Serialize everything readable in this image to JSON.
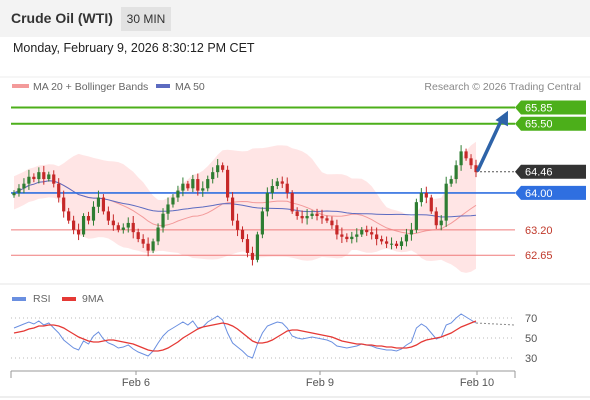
{
  "header": {
    "title": "Crude Oil (WTI)",
    "timeframe": "30 MIN"
  },
  "datetime": "Monday, February 9, 2026 8:30:12 PM CET",
  "legend": {
    "bb_label": "MA 20 + Bollinger Bands",
    "ma50_label": "MA 50",
    "copyright": "Research © 2026 Trading Central",
    "rsi_label": "RSI",
    "rsi_ma_label": "9MA"
  },
  "colors": {
    "up_candle": "#2e7d32",
    "down_candle": "#c62828",
    "band_fill": "#ffdcdc",
    "ma20": "#f39a9a",
    "ma50": "#5c6bc0",
    "resistance": "#4caf1a",
    "pivot": "#2f6fe0",
    "support": "#ef7a7a",
    "current": "#333333",
    "arrow": "#2e63a8",
    "rsi": "#6a8fe0",
    "rsi_ma": "#e53935"
  },
  "chart_data": [
    {
      "type": "candlestick",
      "x_ticks": [
        "Feb 6",
        "Feb 9",
        "Feb 10"
      ],
      "ylim": [
        62.2,
        66.1
      ],
      "levels": [
        {
          "label": "65.85",
          "value": 65.85,
          "kind": "resistance"
        },
        {
          "label": "65.50",
          "value": 65.5,
          "kind": "resistance"
        },
        {
          "label": "64.46",
          "value": 64.46,
          "kind": "current"
        },
        {
          "label": "64.00",
          "value": 64.0,
          "kind": "pivot"
        },
        {
          "label": "63.20",
          "value": 63.2,
          "kind": "support"
        },
        {
          "label": "62.65",
          "value": 62.65,
          "kind": "support"
        }
      ],
      "close": [
        64.0,
        64.1,
        64.2,
        64.35,
        64.3,
        64.45,
        64.3,
        64.4,
        64.2,
        63.9,
        63.6,
        63.4,
        63.2,
        63.1,
        63.5,
        63.4,
        63.7,
        63.9,
        63.6,
        63.4,
        63.3,
        63.2,
        63.25,
        63.35,
        63.15,
        63.0,
        62.9,
        62.75,
        62.95,
        63.25,
        63.55,
        63.75,
        63.9,
        64.05,
        64.2,
        64.1,
        64.3,
        64.05,
        64.1,
        64.3,
        64.45,
        64.6,
        64.5,
        63.9,
        63.4,
        63.2,
        63.0,
        62.7,
        62.55,
        63.1,
        63.6,
        64.0,
        64.15,
        64.25,
        64.2,
        64.0,
        63.6,
        63.5,
        63.45,
        63.5,
        63.55,
        63.5,
        63.45,
        63.4,
        63.3,
        63.1,
        63.05,
        63.0,
        63.05,
        63.1,
        63.2,
        63.15,
        63.1,
        63.0,
        62.95,
        62.9,
        62.9,
        62.85,
        62.95,
        63.1,
        63.2,
        63.8,
        64.0,
        63.9,
        63.6,
        63.3,
        63.4,
        64.2,
        64.3,
        64.6,
        64.9,
        64.75,
        64.6,
        64.45
      ]
    },
    {
      "type": "line",
      "title": "RSI",
      "yticks": [
        70,
        50,
        30
      ],
      "ylim": [
        20,
        80
      ],
      "series": [
        {
          "name": "RSI",
          "values": [
            60,
            62,
            64,
            66,
            64,
            67,
            63,
            65,
            60,
            55,
            48,
            44,
            40,
            38,
            47,
            44,
            52,
            56,
            49,
            45,
            43,
            40,
            41,
            43,
            39,
            36,
            34,
            32,
            37,
            45,
            52,
            57,
            60,
            63,
            66,
            63,
            67,
            60,
            61,
            66,
            69,
            72,
            68,
            55,
            45,
            41,
            37,
            32,
            30,
            44,
            55,
            62,
            64,
            66,
            65,
            60,
            52,
            50,
            49,
            50,
            51,
            50,
            49,
            48,
            46,
            42,
            41,
            40,
            41,
            42,
            44,
            43,
            42,
            40,
            39,
            38,
            38,
            37,
            39,
            43,
            46,
            60,
            64,
            61,
            55,
            49,
            51,
            63,
            65,
            70,
            74,
            71,
            68,
            65
          ]
        },
        {
          "name": "9MA",
          "values": [
            55,
            56,
            57,
            59,
            60,
            62,
            62,
            63,
            63,
            62,
            60,
            57,
            54,
            51,
            49,
            47,
            46,
            46,
            47,
            48,
            48,
            47,
            46,
            45,
            44,
            42,
            40,
            38,
            37,
            37,
            38,
            40,
            43,
            46,
            50,
            53,
            56,
            59,
            61,
            62,
            63,
            64,
            65,
            64,
            62,
            59,
            55,
            51,
            47,
            45,
            45,
            46,
            48,
            51,
            54,
            57,
            58,
            58,
            57,
            56,
            55,
            54,
            53,
            52,
            51,
            49,
            47,
            46,
            45,
            44,
            44,
            43,
            43,
            42,
            42,
            41,
            41,
            40,
            40,
            40,
            41,
            43,
            46,
            48,
            49,
            50,
            51,
            53,
            55,
            58,
            61,
            63,
            65,
            67
          ]
        }
      ]
    }
  ]
}
